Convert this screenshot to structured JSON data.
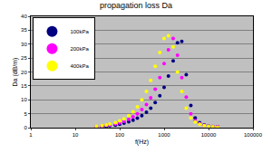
{
  "chart_data": {
    "type": "scatter",
    "title": "propagation loss Da",
    "x_label": "f(Hz)",
    "y_label": "Da (dB/m)",
    "log": "x",
    "grid": true,
    "legend": "top-left",
    "marker": "circle",
    "x": [
      30,
      40,
      50,
      60,
      80,
      100,
      125,
      160,
      200,
      250,
      315,
      400,
      500,
      630,
      800,
      1000,
      1250,
      1600,
      2000,
      2500,
      3150,
      4000,
      5000,
      6300,
      8000,
      10000,
      12500,
      16000
    ],
    "series": [
      {
        "name": "100kPa",
        "color": "#000080",
        "values": [
          0.3,
          0.4,
          0.5,
          0.7,
          0.9,
          1.2,
          1.6,
          2.1,
          2.7,
          3.4,
          4.3,
          5.5,
          7,
          9,
          11.5,
          14.5,
          18.5,
          24,
          30.5,
          31,
          19,
          8,
          3.5,
          1.8,
          1,
          0.6,
          0.4,
          0.3
        ]
      },
      {
        "name": "200kPa",
        "color": "#ff00ff",
        "values": [
          0.4,
          0.6,
          0.8,
          1,
          1.3,
          1.7,
          2.3,
          3,
          3.9,
          5,
          6.5,
          8.3,
          10.7,
          13.8,
          18,
          23,
          28,
          32,
          26,
          18,
          11,
          5,
          2.5,
          1.4,
          0.8,
          0.5,
          0.4,
          0.3
        ]
      },
      {
        "name": "400kPa",
        "color": "#ffff00",
        "values": [
          0.5,
          0.7,
          1,
          1.3,
          1.8,
          2.4,
          3.2,
          4.3,
          5.7,
          7.5,
          10,
          13,
          17,
          22,
          27,
          32,
          33,
          29,
          20,
          13,
          7,
          3.5,
          2,
          1.2,
          0.7,
          0.5,
          0.3,
          0.2
        ]
      }
    ],
    "xlim": [
      1,
      100000
    ],
    "xticks": [
      1,
      10,
      100,
      1000,
      10000,
      100000
    ],
    "ylim": [
      0,
      40
    ],
    "yticks": [
      0,
      5,
      10,
      15,
      20,
      25,
      30,
      35,
      40
    ]
  }
}
